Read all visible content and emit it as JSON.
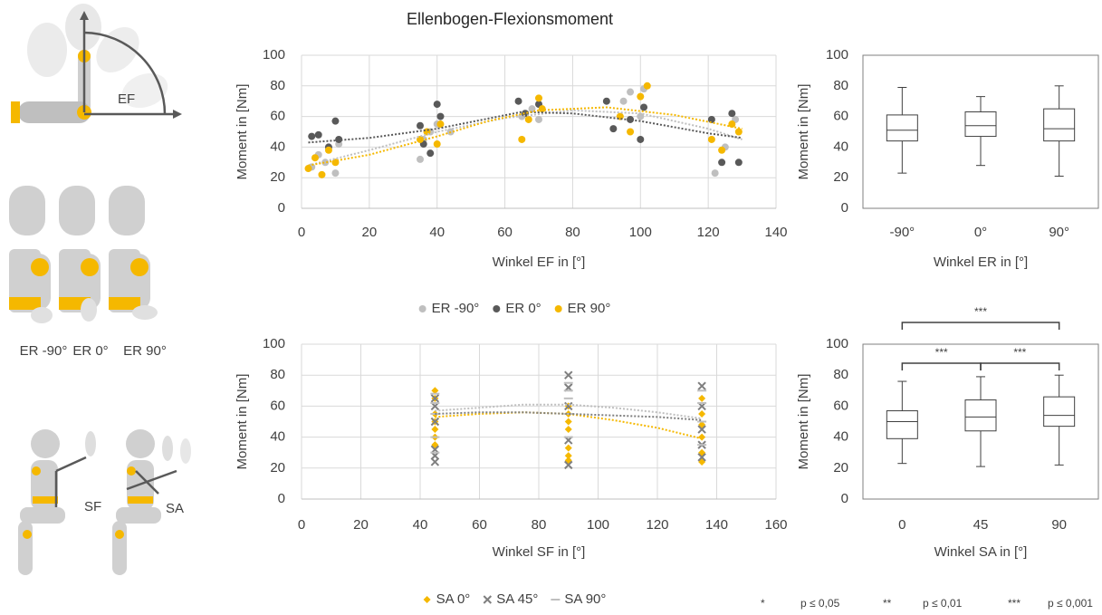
{
  "chart_data": [
    {
      "type": "scatter",
      "title": "Ellenbogen-Flexionsmoment",
      "xlabel": "Winkel EF in [°]",
      "ylabel": "Moment in [Nm]",
      "xlim": [
        0,
        140
      ],
      "xticks": [
        0,
        20,
        40,
        60,
        80,
        100,
        120,
        140
      ],
      "ylim": [
        0,
        100
      ],
      "yticks": [
        0,
        20,
        40,
        60,
        80,
        100
      ],
      "grid": true,
      "legend": "bottom",
      "series": [
        {
          "name": "ER -90°",
          "color": "#bfbfbf",
          "marker": "circle",
          "x": [
            3,
            5,
            7,
            10,
            11,
            35,
            36,
            38,
            40,
            44,
            65,
            68,
            70,
            95,
            97,
            100,
            101,
            122,
            125,
            128
          ],
          "values": [
            27,
            35,
            30,
            23,
            42,
            32,
            45,
            50,
            55,
            50,
            60,
            65,
            58,
            70,
            76,
            60,
            78,
            23,
            40,
            58
          ],
          "trend": {
            "x": [
              2,
              20,
              40,
              60,
              80,
              100,
              120,
              130
            ],
            "values": [
              28,
              38,
              50,
              59,
              64,
              62,
              52,
              45
            ]
          }
        },
        {
          "name": "ER 0°",
          "color": "#595959",
          "marker": "circle",
          "x": [
            3,
            5,
            8,
            10,
            11,
            35,
            36,
            38,
            40,
            41,
            64,
            66,
            70,
            90,
            92,
            97,
            100,
            101,
            121,
            124,
            127,
            129
          ],
          "values": [
            47,
            48,
            40,
            57,
            45,
            54,
            42,
            36,
            68,
            60,
            70,
            62,
            68,
            70,
            52,
            58,
            45,
            66,
            58,
            30,
            62,
            30
          ],
          "trend": {
            "x": [
              2,
              20,
              40,
              65,
              80,
              100,
              120,
              130
            ],
            "values": [
              43,
              46,
              52,
              63,
              62,
              57,
              49,
              46
            ]
          }
        },
        {
          "name": "ER 90°",
          "color": "#f5b800",
          "marker": "circle",
          "x": [
            2,
            4,
            6,
            8,
            10,
            35,
            37,
            40,
            41,
            65,
            67,
            70,
            71,
            94,
            97,
            100,
            102,
            121,
            124,
            127,
            129
          ],
          "values": [
            26,
            33,
            22,
            38,
            30,
            45,
            50,
            42,
            55,
            45,
            58,
            72,
            65,
            60,
            50,
            73,
            80,
            45,
            38,
            55,
            50
          ],
          "trend": {
            "x": [
              2,
              20,
              40,
              55,
              70,
              90,
              110,
              130
            ],
            "values": [
              28,
              35,
              47,
              57,
              64,
              66,
              61,
              52
            ]
          }
        }
      ]
    },
    {
      "type": "box",
      "xlabel": "Winkel ER in [°]",
      "ylabel": "Moment in [Nm]",
      "categories": [
        "-90°",
        "0°",
        "90°"
      ],
      "ylim": [
        0,
        100
      ],
      "yticks": [
        0,
        20,
        40,
        60,
        80,
        100
      ],
      "grid": false,
      "min": [
        23,
        28,
        21
      ],
      "q1": [
        44,
        47,
        44
      ],
      "median": [
        51,
        54,
        52
      ],
      "q3": [
        61,
        63,
        65
      ],
      "max": [
        79,
        73,
        80
      ]
    },
    {
      "type": "scatter",
      "xlabel": "Winkel SF in [°]",
      "ylabel": "Moment in [Nm]",
      "xlim": [
        0,
        160
      ],
      "xticks": [
        0,
        20,
        40,
        60,
        80,
        100,
        120,
        140,
        160
      ],
      "ylim": [
        0,
        100
      ],
      "yticks": [
        0,
        20,
        40,
        60,
        80,
        100
      ],
      "grid": true,
      "legend": "bottom",
      "series": [
        {
          "name": "SA 0°",
          "color": "#f5b800",
          "marker": "diamond",
          "x": [
            45,
            45,
            45,
            45,
            45,
            45,
            45,
            90,
            90,
            90,
            90,
            90,
            90,
            90,
            135,
            135,
            135,
            135,
            135,
            135
          ],
          "values": [
            70,
            65,
            55,
            45,
            40,
            35,
            50,
            55,
            45,
            33,
            28,
            25,
            60,
            50,
            24,
            30,
            40,
            55,
            65,
            48
          ],
          "trend": {
            "x": [
              45,
              60,
              75,
              90,
              105,
              120,
              135
            ],
            "values": [
              53,
              55,
              56,
              55,
              51,
              46,
              39
            ]
          }
        },
        {
          "name": "SA 45°",
          "color": "#7f7f7f",
          "marker": "x",
          "x": [
            45,
            45,
            45,
            45,
            45,
            45,
            90,
            90,
            90,
            90,
            90,
            135,
            135,
            135,
            135,
            135
          ],
          "values": [
            24,
            28,
            32,
            50,
            60,
            65,
            22,
            38,
            60,
            72,
            80,
            27,
            35,
            45,
            60,
            73
          ],
          "trend": {
            "x": [
              45,
              60,
              75,
              90,
              105,
              120,
              135
            ],
            "values": [
              55,
              56,
              56,
              55,
              54,
              53,
              51
            ]
          }
        },
        {
          "name": "SA 90°",
          "color": "#bfbfbf",
          "marker": "dash",
          "x": [
            45,
            45,
            45,
            45,
            45,
            90,
            90,
            90,
            90,
            90,
            135,
            135,
            135,
            135
          ],
          "values": [
            30,
            40,
            55,
            62,
            68,
            40,
            55,
            65,
            70,
            75,
            35,
            50,
            62,
            70
          ],
          "trend": {
            "x": [
              45,
              60,
              75,
              90,
              105,
              120,
              135
            ],
            "values": [
              57,
              59,
              61,
              61,
              59,
              56,
              52
            ]
          }
        }
      ]
    },
    {
      "type": "box",
      "xlabel": "Winkel SA in [°]",
      "ylabel": "Moment in [Nm]",
      "categories": [
        "0",
        "45",
        "90"
      ],
      "ylim": [
        0,
        100
      ],
      "yticks": [
        0,
        20,
        40,
        60,
        80,
        100
      ],
      "grid": false,
      "min": [
        23,
        21,
        22
      ],
      "q1": [
        39,
        44,
        47
      ],
      "median": [
        50,
        53,
        54
      ],
      "q3": [
        57,
        64,
        66
      ],
      "max": [
        76,
        79,
        80
      ],
      "significance": [
        {
          "from": "0",
          "to": "90",
          "label": "***"
        },
        {
          "from": "0",
          "to": "45",
          "label": "***"
        },
        {
          "from": "45",
          "to": "90",
          "label": "***"
        }
      ]
    }
  ],
  "significance_legend": [
    {
      "symbol": "*",
      "label": "p ≤ 0,05"
    },
    {
      "symbol": "**",
      "label": "p ≤ 0,01"
    },
    {
      "symbol": "***",
      "label": "p ≤ 0,001"
    }
  ],
  "illustrations": {
    "ef_label": "EF",
    "er_labels": [
      "ER -90°",
      "ER 0°",
      "ER 90°"
    ],
    "sf_label": "SF",
    "sa_label": "SA"
  }
}
